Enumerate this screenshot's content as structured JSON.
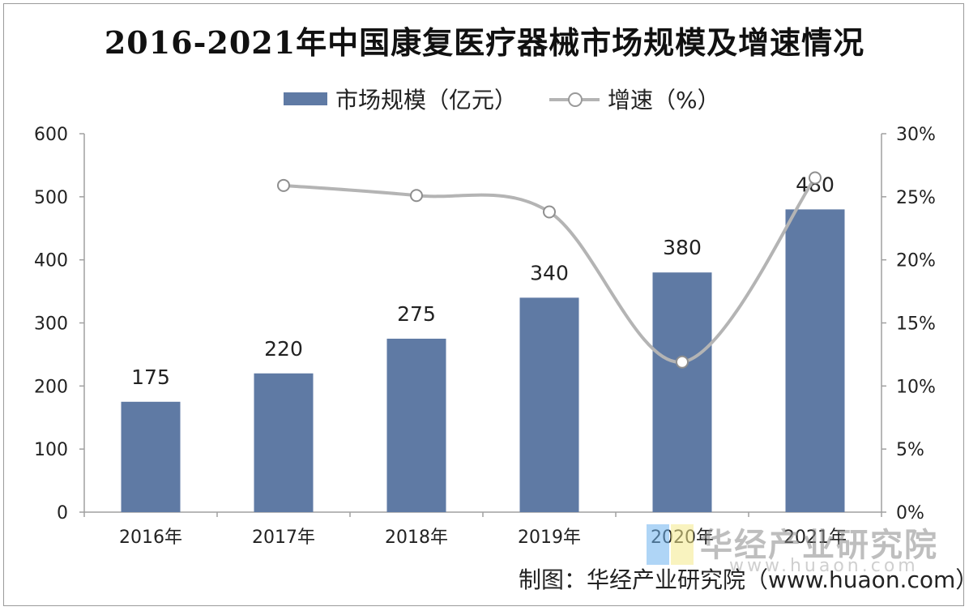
{
  "chart_data": {
    "type": "bar",
    "title": "2016-2021年中国康复医疗器械市场规模及增速情况",
    "categories": [
      "2016年",
      "2017年",
      "2018年",
      "2019年",
      "2020年",
      "2021年"
    ],
    "series": [
      {
        "name": "市场规模（亿元）",
        "type": "bar",
        "axis": "left",
        "values": [
          175,
          220,
          275,
          340,
          380,
          480
        ],
        "color": "#5f7aa4"
      },
      {
        "name": "增速（%）",
        "type": "line",
        "axis": "right",
        "smooth": true,
        "values": [
          null,
          25.9,
          25.1,
          23.8,
          11.9,
          26.5
        ],
        "color": "#b4b4b4"
      }
    ],
    "y_left": {
      "min": 0,
      "max": 600,
      "ticks": [
        "0",
        "100",
        "200",
        "300",
        "400",
        "500",
        "600"
      ]
    },
    "y_right": {
      "min": 0,
      "max": 30,
      "ticks": [
        "0%",
        "5%",
        "10%",
        "15%",
        "20%",
        "25%",
        "30%"
      ]
    },
    "data_labels": [
      "175",
      "220",
      "275",
      "340",
      "380",
      "480"
    ],
    "legend_position": "top-center",
    "grid": false
  },
  "source": "制图：华经产业研究院（www.huaon.com）",
  "watermark": {
    "name": "华经产业研究院",
    "url": "www.huaon.com"
  }
}
